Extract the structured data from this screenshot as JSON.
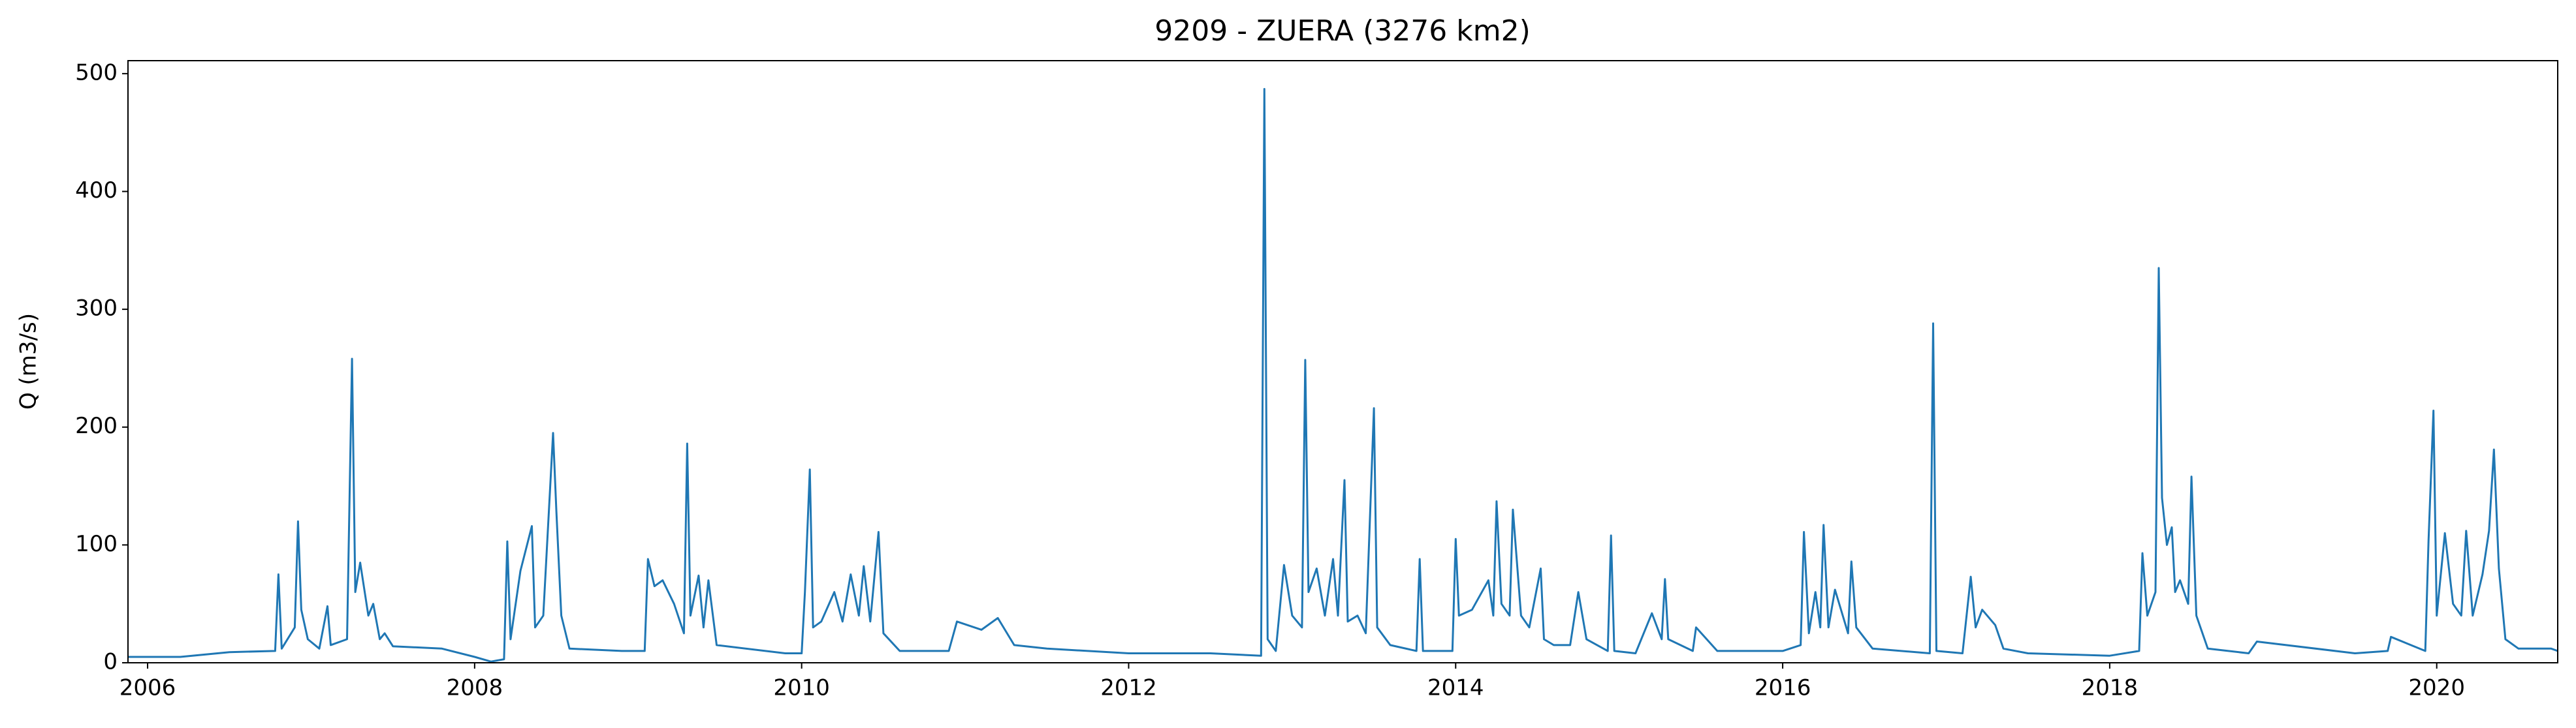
{
  "chart_data": {
    "type": "line",
    "title": "9209 - ZUERA (3276 km2)",
    "y_label": "Q (m3/s)",
    "x": [
      2005.88,
      2006.2,
      2006.5,
      2006.78,
      2006.8,
      2006.82,
      2006.9,
      2006.92,
      2006.94,
      2006.98,
      2007.05,
      2007.1,
      2007.12,
      2007.22,
      2007.25,
      2007.27,
      2007.3,
      2007.35,
      2007.38,
      2007.42,
      2007.45,
      2007.5,
      2007.8,
      2008.0,
      2008.1,
      2008.18,
      2008.2,
      2008.22,
      2008.28,
      2008.35,
      2008.37,
      2008.42,
      2008.48,
      2008.5,
      2008.53,
      2008.58,
      2008.9,
      2009.04,
      2009.06,
      2009.1,
      2009.15,
      2009.22,
      2009.28,
      2009.3,
      2009.32,
      2009.37,
      2009.4,
      2009.43,
      2009.48,
      2009.9,
      2010.0,
      2010.02,
      2010.05,
      2010.07,
      2010.12,
      2010.2,
      2010.25,
      2010.3,
      2010.35,
      2010.38,
      2010.42,
      2010.47,
      2010.5,
      2010.6,
      2010.9,
      2010.95,
      2011.1,
      2011.2,
      2011.3,
      2011.5,
      2012.0,
      2012.5,
      2012.81,
      2012.83,
      2012.85,
      2012.9,
      2012.95,
      2013.0,
      2013.06,
      2013.08,
      2013.1,
      2013.15,
      2013.2,
      2013.25,
      2013.28,
      2013.32,
      2013.34,
      2013.4,
      2013.45,
      2013.5,
      2013.52,
      2013.6,
      2013.76,
      2013.78,
      2013.8,
      2013.98,
      2014.0,
      2014.02,
      2014.1,
      2014.2,
      2014.23,
      2014.25,
      2014.28,
      2014.33,
      2014.35,
      2014.4,
      2014.45,
      2014.52,
      2014.54,
      2014.6,
      2014.7,
      2014.75,
      2014.8,
      2014.93,
      2014.95,
      2014.97,
      2015.1,
      2015.2,
      2015.26,
      2015.28,
      2015.3,
      2015.45,
      2015.47,
      2015.6,
      2016.0,
      2016.11,
      2016.13,
      2016.16,
      2016.2,
      2016.23,
      2016.25,
      2016.28,
      2016.32,
      2016.4,
      2016.42,
      2016.45,
      2016.55,
      2016.9,
      2016.92,
      2016.94,
      2017.1,
      2017.15,
      2017.18,
      2017.22,
      2017.3,
      2017.35,
      2017.5,
      2018.0,
      2018.18,
      2018.2,
      2018.23,
      2018.28,
      2018.3,
      2018.32,
      2018.35,
      2018.38,
      2018.4,
      2018.43,
      2018.48,
      2018.5,
      2018.53,
      2018.6,
      2018.85,
      2018.9,
      2019.5,
      2019.7,
      2019.72,
      2019.93,
      2019.95,
      2019.98,
      2020.0,
      2020.05,
      2020.1,
      2020.15,
      2020.18,
      2020.22,
      2020.28,
      2020.32,
      2020.35,
      2020.38,
      2020.42,
      2020.5,
      2020.7,
      2020.74
    ],
    "values": [
      5,
      5,
      9,
      10,
      75,
      12,
      30,
      120,
      45,
      20,
      12,
      48,
      15,
      20,
      258,
      60,
      85,
      40,
      50,
      20,
      25,
      14,
      12,
      5,
      1,
      3,
      103,
      20,
      78,
      116,
      30,
      40,
      195,
      128,
      40,
      12,
      10,
      10,
      88,
      65,
      70,
      50,
      25,
      186,
      40,
      74,
      30,
      70,
      15,
      8,
      8,
      60,
      164,
      30,
      35,
      60,
      35,
      75,
      40,
      82,
      35,
      111,
      25,
      10,
      10,
      35,
      28,
      38,
      15,
      12,
      8,
      8,
      6,
      487,
      20,
      10,
      83,
      40,
      30,
      257,
      60,
      80,
      40,
      88,
      40,
      155,
      35,
      40,
      25,
      216,
      30,
      15,
      10,
      88,
      10,
      10,
      105,
      40,
      45,
      70,
      40,
      137,
      50,
      40,
      130,
      40,
      30,
      80,
      20,
      15,
      15,
      60,
      20,
      10,
      108,
      10,
      8,
      42,
      20,
      71,
      20,
      10,
      30,
      10,
      10,
      15,
      111,
      25,
      60,
      30,
      117,
      30,
      62,
      25,
      86,
      30,
      12,
      8,
      288,
      10,
      8,
      73,
      30,
      45,
      32,
      12,
      8,
      6,
      10,
      93,
      40,
      60,
      335,
      140,
      100,
      115,
      60,
      70,
      50,
      158,
      40,
      12,
      8,
      18,
      8,
      10,
      22,
      10,
      104,
      214,
      40,
      110,
      50,
      40,
      112,
      40,
      75,
      112,
      181,
      80,
      20,
      12,
      12,
      10
    ],
    "color": "#1f77b4",
    "xlim": [
      2005.88,
      2020.74
    ],
    "xticks": [
      2006,
      2008,
      2010,
      2012,
      2014,
      2016,
      2018,
      2020
    ],
    "ylim": [
      0,
      511
    ],
    "yticks": [
      0,
      100,
      200,
      300,
      400,
      500
    ],
    "grid": false
  }
}
